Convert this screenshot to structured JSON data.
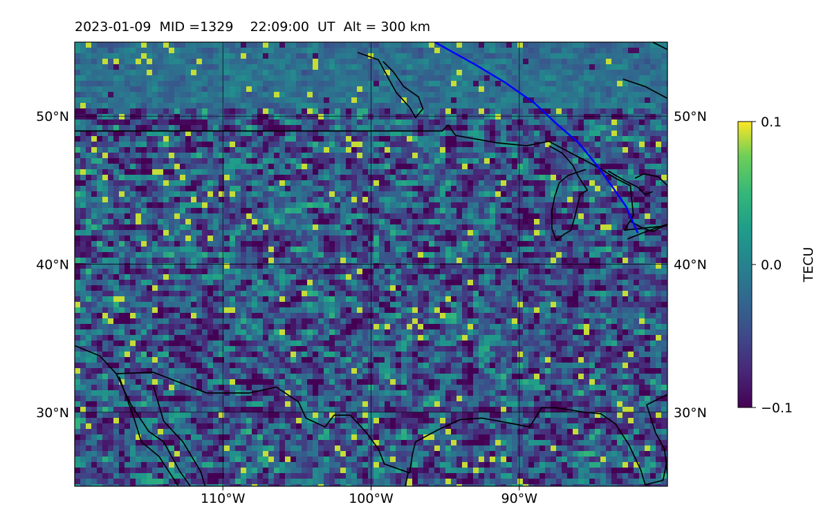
{
  "title": "2023-01-09  MID =1329    22:09:00  UT  Alt = 300 km",
  "map": {
    "lon_range": [
      -120,
      -80
    ],
    "lat_range": [
      25,
      55
    ],
    "grid": true,
    "lon_ticks": [
      {
        "value": -110,
        "label": "110°W"
      },
      {
        "value": -100,
        "label": "100°W"
      },
      {
        "value": -90,
        "label": "90°W"
      }
    ],
    "lat_ticks": [
      {
        "value": 50,
        "label": "50°N"
      },
      {
        "value": 40,
        "label": "40°N"
      },
      {
        "value": 30,
        "label": "30°N"
      }
    ],
    "colormap": "viridis",
    "track_color": "#0000ff",
    "border_color": "#000000",
    "satellite_track": [
      [
        -95.7,
        55
      ],
      [
        -93,
        53.5
      ],
      [
        -91,
        52.3
      ],
      [
        -89,
        50.9
      ],
      [
        -87.5,
        49.5
      ],
      [
        -86,
        48.2
      ],
      [
        -84.7,
        46.6
      ],
      [
        -83.7,
        45.2
      ],
      [
        -82.8,
        43.9
      ],
      [
        -82.0,
        42.1
      ]
    ],
    "borders": [
      [
        [
          -120,
          49
        ],
        [
          -95.2,
          49
        ],
        [
          -94.8,
          49.4
        ],
        [
          -94.3,
          48.7
        ],
        [
          -91.5,
          48.2
        ],
        [
          -89.5,
          48.0
        ],
        [
          -88.0,
          48.3
        ],
        [
          -86.5,
          47.5
        ],
        [
          -84.6,
          46.5
        ],
        [
          -83.5,
          45.8
        ],
        [
          -82.5,
          45.3
        ],
        [
          -82.3,
          43.3
        ],
        [
          -82.9,
          42.3
        ],
        [
          -80,
          42.6
        ]
      ],
      [
        [
          -120,
          34.5
        ],
        [
          -118.3,
          33.8
        ],
        [
          -117.2,
          32.6
        ],
        [
          -114.7,
          32.7
        ],
        [
          -111.1,
          31.3
        ],
        [
          -108.2,
          31.3
        ],
        [
          -106.4,
          31.7
        ],
        [
          -104.9,
          30.7
        ],
        [
          -104.4,
          29.6
        ],
        [
          -103.1,
          29.0
        ],
        [
          -102.5,
          29.8
        ],
        [
          -101.4,
          29.8
        ],
        [
          -100.3,
          28.6
        ],
        [
          -99.5,
          27.5
        ],
        [
          -99.1,
          26.5
        ],
        [
          -97.4,
          25.9
        ]
      ],
      [
        [
          -117.2,
          32.6
        ],
        [
          -116.2,
          30.5
        ],
        [
          -115.0,
          28.7
        ],
        [
          -114.0,
          28.0
        ],
        [
          -112.9,
          26.0
        ],
        [
          -112.2,
          25.0
        ]
      ],
      [
        [
          -114.7,
          31.8
        ],
        [
          -114.0,
          29.4
        ],
        [
          -112.7,
          28.0
        ],
        [
          -111.5,
          26.0
        ],
        [
          -111.2,
          25.0
        ]
      ],
      [
        [
          -97.4,
          25.9
        ],
        [
          -97.2,
          27.2
        ],
        [
          -97.0,
          28.0
        ],
        [
          -95.5,
          28.8
        ],
        [
          -94.0,
          29.5
        ],
        [
          -92.5,
          29.6
        ],
        [
          -90.3,
          29.2
        ],
        [
          -89.3,
          29.0
        ],
        [
          -88.5,
          30.3
        ],
        [
          -87.5,
          30.3
        ],
        [
          -85.6,
          30.0
        ],
        [
          -84.5,
          29.9
        ],
        [
          -83.5,
          29.2
        ],
        [
          -82.6,
          27.8
        ],
        [
          -81.8,
          26.1
        ],
        [
          -81.5,
          25.1
        ],
        [
          -80.3,
          25.4
        ],
        [
          -80.0,
          26.9
        ]
      ],
      [
        [
          -80.0,
          31.2
        ],
        [
          -81.4,
          30.5
        ],
        [
          -80.8,
          28.6
        ],
        [
          -80.2,
          27.5
        ],
        [
          -80.0,
          25.8
        ]
      ],
      [
        [
          -97.5,
          25.9
        ],
        [
          -97.8,
          24.5
        ],
        [
          -98.5,
          22.0
        ]
      ],
      [
        [
          -117.0,
          32.4
        ],
        [
          -116.0,
          29.6
        ],
        [
          -115.5,
          28.0
        ],
        [
          -114.3,
          27.0
        ],
        [
          -113.0,
          25.0
        ]
      ],
      [
        [
          -100.9,
          54.3
        ],
        [
          -99.5,
          53.8
        ],
        [
          -98.8,
          52.5
        ],
        [
          -98.3,
          51.6
        ],
        [
          -97.4,
          50.6
        ],
        [
          -97.0,
          49.9
        ],
        [
          -96.5,
          50.5
        ],
        [
          -96.8,
          51.3
        ],
        [
          -97.8,
          52.0
        ],
        [
          -98.5,
          53.0
        ],
        [
          -99.2,
          53.7
        ]
      ],
      [
        [
          -88.0,
          48.0
        ],
        [
          -87.1,
          47.5
        ],
        [
          -86.4,
          46.7
        ],
        [
          -86.0,
          45.9
        ],
        [
          -85.4,
          45.0
        ],
        [
          -85.9,
          44.7
        ],
        [
          -86.2,
          43.4
        ],
        [
          -86.5,
          42.3
        ],
        [
          -87.0,
          42.0
        ],
        [
          -87.5,
          41.6
        ],
        [
          -87.8,
          42.4
        ],
        [
          -87.8,
          43.6
        ],
        [
          -87.6,
          44.6
        ],
        [
          -87.3,
          45.5
        ],
        [
          -86.7,
          46.0
        ],
        [
          -85.5,
          46.4
        ]
      ],
      [
        [
          -84.0,
          46.3
        ],
        [
          -83.5,
          46.0
        ],
        [
          -82.8,
          45.6
        ],
        [
          -82.0,
          45.2
        ],
        [
          -81.5,
          44.7
        ],
        [
          -81.0,
          44.9
        ]
      ],
      [
        [
          -82.2,
          45.8
        ],
        [
          -81.6,
          46.1
        ],
        [
          -80.6,
          45.9
        ],
        [
          -80.0,
          45.3
        ]
      ],
      [
        [
          -82.5,
          42.9
        ],
        [
          -81.8,
          42.5
        ],
        [
          -81.0,
          42.2
        ],
        [
          -80.0,
          42.7
        ]
      ],
      [
        [
          -82.7,
          41.7
        ],
        [
          -81.7,
          42.1
        ],
        [
          -80.6,
          42.5
        ],
        [
          -80.0,
          42.7
        ]
      ],
      [
        [
          -80.0,
          54.5
        ],
        [
          -81.0,
          55.0
        ]
      ],
      [
        [
          -83.0,
          52.5
        ],
        [
          -81.5,
          52.0
        ],
        [
          -80.0,
          51.2
        ]
      ]
    ]
  },
  "colorbar": {
    "label": "TECU",
    "min": -0.1,
    "max": 0.1,
    "ticks": [
      {
        "value": 0.1,
        "label": "0.1"
      },
      {
        "value": 0.0,
        "label": "0.0"
      },
      {
        "value": -0.1,
        "label": "−0.1"
      }
    ]
  }
}
